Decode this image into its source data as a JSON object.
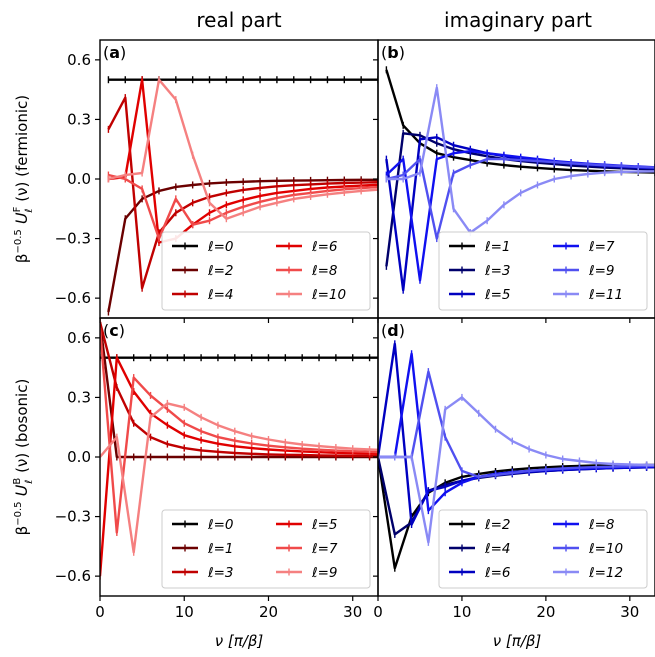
{
  "column_titles": [
    "real part",
    "imaginary part"
  ],
  "row_ylabels": {
    "fermionic": {
      "prefix": "β",
      "prefix_sup": "−0.5",
      "main": "U",
      "sup": "F",
      "sub": "ℓ",
      "arg": "(ν) (fermionic)"
    },
    "bosonic": {
      "prefix": "β",
      "prefix_sup": "−0.5",
      "main": "U",
      "sup": "B",
      "sub": "ℓ",
      "arg": "(ν) (bosonic)"
    }
  },
  "xlabel": "ν [π/β]",
  "x_ticks": [
    0,
    10,
    20,
    30
  ],
  "y_ticks": [
    -0.6,
    -0.3,
    0.0,
    0.3,
    0.6
  ],
  "y_tick_labels": [
    "−0.6",
    "−0.3",
    "0.0",
    "0.3",
    "0.6"
  ],
  "x_tick_labels": [
    "0",
    "10",
    "20",
    "30"
  ],
  "xlim": [
    0,
    33
  ],
  "ylim": [
    -0.7,
    0.7
  ],
  "chart_data": [
    {
      "panel": "(a)",
      "type": "line",
      "legend_position": "lower-right",
      "series": [
        {
          "name": "ℓ=0",
          "color": "#000000",
          "x": [
            1,
            3,
            5,
            7,
            9,
            11,
            13,
            15,
            17,
            19,
            21,
            23,
            25,
            27,
            29,
            31,
            33
          ],
          "y": [
            0.5,
            0.5,
            0.5,
            0.5,
            0.5,
            0.5,
            0.5,
            0.5,
            0.5,
            0.5,
            0.5,
            0.5,
            0.5,
            0.5,
            0.5,
            0.5,
            0.5
          ]
        },
        {
          "name": "ℓ=2",
          "color": "#6b0000",
          "x": [
            1,
            3,
            5,
            7,
            9,
            11,
            13,
            15,
            17,
            19,
            21,
            23,
            25,
            27,
            29,
            31,
            33
          ],
          "y": [
            -0.67,
            -0.2,
            -0.1,
            -0.06,
            -0.04,
            -0.03,
            -0.022,
            -0.017,
            -0.014,
            -0.011,
            -0.009,
            -0.008,
            -0.007,
            -0.006,
            -0.005,
            -0.004,
            -0.004
          ]
        },
        {
          "name": "ℓ=4",
          "color": "#c00000",
          "x": [
            1,
            3,
            5,
            7,
            9,
            11,
            13,
            15,
            17,
            19,
            21,
            23,
            25,
            27,
            29,
            31,
            33
          ],
          "y": [
            0.25,
            0.41,
            -0.55,
            -0.27,
            -0.17,
            -0.12,
            -0.09,
            -0.07,
            -0.055,
            -0.045,
            -0.037,
            -0.031,
            -0.027,
            -0.023,
            -0.02,
            -0.018,
            -0.016
          ]
        },
        {
          "name": "ℓ=6",
          "color": "#e00000",
          "x": [
            1,
            3,
            5,
            7,
            9,
            11,
            13,
            15,
            17,
            19,
            21,
            23,
            25,
            27,
            29,
            31,
            33
          ],
          "y": [
            0.0,
            0.01,
            0.5,
            -0.32,
            -0.3,
            -0.23,
            -0.17,
            -0.13,
            -0.105,
            -0.085,
            -0.07,
            -0.06,
            -0.05,
            -0.043,
            -0.038,
            -0.033,
            -0.029
          ]
        },
        {
          "name": "ℓ=8",
          "color": "#f04a4a",
          "x": [
            1,
            3,
            5,
            7,
            9,
            11,
            13,
            15,
            17,
            19,
            21,
            23,
            25,
            27,
            29,
            31,
            33
          ],
          "y": [
            0.02,
            0.0,
            -0.05,
            -0.3,
            -0.1,
            -0.23,
            -0.21,
            -0.17,
            -0.14,
            -0.115,
            -0.095,
            -0.08,
            -0.07,
            -0.06,
            -0.052,
            -0.046,
            -0.041
          ]
        },
        {
          "name": "ℓ=10",
          "color": "#f58080",
          "x": [
            1,
            3,
            5,
            7,
            9,
            11,
            13,
            15,
            17,
            19,
            21,
            23,
            25,
            27,
            29,
            31,
            33
          ],
          "y": [
            0.0,
            0.02,
            0.03,
            0.5,
            0.4,
            0.12,
            -0.12,
            -0.2,
            -0.17,
            -0.14,
            -0.12,
            -0.1,
            -0.088,
            -0.077,
            -0.068,
            -0.06,
            -0.054
          ]
        }
      ]
    },
    {
      "panel": "(b)",
      "type": "line",
      "legend_position": "lower-right",
      "series": [
        {
          "name": "ℓ=1",
          "color": "#000000",
          "x": [
            1,
            3,
            5,
            7,
            9,
            11,
            13,
            15,
            17,
            19,
            21,
            23,
            25,
            27,
            29,
            31,
            33
          ],
          "y": [
            0.55,
            0.27,
            0.18,
            0.13,
            0.11,
            0.095,
            0.08,
            0.07,
            0.062,
            0.056,
            0.05,
            0.045,
            0.042,
            0.039,
            0.036,
            0.034,
            0.032
          ]
        },
        {
          "name": "ℓ=3",
          "color": "#00006b",
          "x": [
            1,
            3,
            5,
            7,
            9,
            11,
            13,
            15,
            17,
            19,
            21,
            23,
            25,
            27,
            29,
            31,
            33
          ],
          "y": [
            -0.44,
            0.23,
            0.22,
            0.18,
            0.15,
            0.13,
            0.115,
            0.1,
            0.09,
            0.082,
            0.075,
            0.068,
            0.063,
            0.058,
            0.054,
            0.051,
            0.048
          ]
        },
        {
          "name": "ℓ=5",
          "color": "#0000c0",
          "x": [
            1,
            3,
            5,
            7,
            9,
            11,
            13,
            15,
            17,
            19,
            21,
            23,
            25,
            27,
            29,
            31,
            33
          ],
          "y": [
            0.1,
            -0.56,
            0.2,
            0.21,
            0.17,
            0.15,
            0.13,
            0.115,
            0.1,
            0.092,
            0.084,
            0.077,
            0.071,
            0.066,
            0.061,
            0.057,
            0.054
          ]
        },
        {
          "name": "ℓ=7",
          "color": "#1010f0",
          "x": [
            1,
            3,
            5,
            7,
            9,
            11,
            13,
            15,
            17,
            19,
            21,
            23,
            25,
            27,
            29,
            31,
            33
          ],
          "y": [
            0.02,
            0.1,
            -0.51,
            0.1,
            0.13,
            0.14,
            0.13,
            0.12,
            0.11,
            0.1,
            0.09,
            0.083,
            0.077,
            0.072,
            0.067,
            0.063,
            0.059
          ]
        },
        {
          "name": "ℓ=9",
          "color": "#5050f0",
          "x": [
            1,
            3,
            5,
            7,
            9,
            11,
            13,
            15,
            17,
            19,
            21,
            23,
            25,
            27,
            29,
            31,
            33
          ],
          "y": [
            0.0,
            0.02,
            0.1,
            -0.3,
            0.03,
            0.07,
            0.1,
            0.1,
            0.095,
            0.09,
            0.085,
            0.079,
            0.074,
            0.069,
            0.065,
            0.061,
            0.058
          ]
        },
        {
          "name": "ℓ=11",
          "color": "#8a8af5",
          "x": [
            1,
            3,
            5,
            7,
            9,
            11,
            13,
            15,
            17,
            19,
            21,
            23,
            25,
            27,
            29,
            31,
            33
          ],
          "y": [
            0.0,
            0.0,
            0.03,
            0.46,
            -0.15,
            -0.27,
            -0.21,
            -0.13,
            -0.07,
            -0.03,
            0.0,
            0.015,
            0.025,
            0.032,
            0.036,
            0.038,
            0.039
          ]
        }
      ]
    },
    {
      "panel": "(c)",
      "type": "line",
      "legend_position": "lower-right",
      "series": [
        {
          "name": "ℓ=0",
          "color": "#000000",
          "x": [
            0,
            2,
            4,
            6,
            8,
            10,
            12,
            14,
            16,
            18,
            20,
            22,
            24,
            26,
            28,
            30,
            32,
            34
          ],
          "y": [
            0.5,
            0.5,
            0.5,
            0.5,
            0.5,
            0.5,
            0.5,
            0.5,
            0.5,
            0.5,
            0.5,
            0.5,
            0.5,
            0.5,
            0.5,
            0.5,
            0.5,
            0.5
          ]
        },
        {
          "name": "ℓ=1",
          "color": "#6b0000",
          "x": [
            0,
            2,
            4,
            6,
            8,
            10,
            12,
            14,
            16,
            18,
            20,
            22,
            24,
            26,
            28,
            30,
            32,
            34
          ],
          "y": [
            0.68,
            0.0,
            0.0,
            0.0,
            0.0,
            0.0,
            0.0,
            0.0,
            0.0,
            0.0,
            0.0,
            0.0,
            0.0,
            0.0,
            0.0,
            0.0,
            0.0,
            0.0
          ]
        },
        {
          "name": "ℓ=3",
          "color": "#c00000",
          "x": [
            0,
            2,
            4,
            6,
            8,
            10,
            12,
            14,
            16,
            18,
            20,
            22,
            24,
            26,
            28,
            30,
            32,
            34
          ],
          "y": [
            0.68,
            0.35,
            0.17,
            0.1,
            0.065,
            0.045,
            0.033,
            0.026,
            0.02,
            0.016,
            0.013,
            0.011,
            0.01,
            0.008,
            0.007,
            0.006,
            0.006,
            0.005
          ]
        },
        {
          "name": "ℓ=5",
          "color": "#e00000",
          "x": [
            0,
            2,
            4,
            6,
            8,
            10,
            12,
            14,
            16,
            18,
            20,
            22,
            24,
            26,
            28,
            30,
            32,
            34
          ],
          "y": [
            -0.6,
            0.5,
            0.33,
            0.22,
            0.16,
            0.11,
            0.085,
            0.067,
            0.054,
            0.045,
            0.038,
            0.032,
            0.028,
            0.024,
            0.021,
            0.019,
            0.017,
            0.015
          ]
        },
        {
          "name": "ℓ=7",
          "color": "#f04a4a",
          "x": [
            0,
            2,
            4,
            6,
            8,
            10,
            12,
            14,
            16,
            18,
            20,
            22,
            24,
            26,
            28,
            30,
            32,
            34
          ],
          "y": [
            0.65,
            -0.38,
            0.4,
            0.31,
            0.24,
            0.17,
            0.13,
            0.1,
            0.082,
            0.068,
            0.057,
            0.049,
            0.042,
            0.037,
            0.032,
            0.029,
            0.026,
            0.023
          ]
        },
        {
          "name": "ℓ=9",
          "color": "#f58080",
          "x": [
            0,
            2,
            4,
            6,
            8,
            10,
            12,
            14,
            16,
            18,
            20,
            22,
            24,
            26,
            28,
            30,
            32,
            34
          ],
          "y": [
            0.0,
            0.1,
            -0.48,
            0.2,
            0.27,
            0.25,
            0.2,
            0.16,
            0.13,
            0.105,
            0.088,
            0.074,
            0.063,
            0.055,
            0.048,
            0.042,
            0.038,
            0.034
          ]
        }
      ]
    },
    {
      "panel": "(d)",
      "type": "line",
      "legend_position": "lower-right",
      "series": [
        {
          "name": "ℓ=2",
          "color": "#000000",
          "x": [
            0,
            2,
            4,
            6,
            8,
            10,
            12,
            14,
            16,
            18,
            20,
            22,
            24,
            26,
            28,
            30,
            32,
            34
          ],
          "y": [
            0.0,
            -0.56,
            -0.3,
            -0.18,
            -0.13,
            -0.1,
            -0.085,
            -0.073,
            -0.064,
            -0.057,
            -0.052,
            -0.048,
            -0.045,
            -0.043,
            -0.042,
            -0.041,
            -0.04,
            -0.04
          ]
        },
        {
          "name": "ℓ=4",
          "color": "#00006b",
          "x": [
            0,
            2,
            4,
            6,
            8,
            10,
            12,
            14,
            16,
            18,
            20,
            22,
            24,
            26,
            28,
            30,
            32,
            34
          ],
          "y": [
            0.0,
            -0.39,
            -0.33,
            -0.17,
            -0.14,
            -0.12,
            -0.105,
            -0.094,
            -0.085,
            -0.077,
            -0.071,
            -0.066,
            -0.062,
            -0.059,
            -0.056,
            -0.054,
            -0.052,
            -0.051
          ]
        },
        {
          "name": "ℓ=6",
          "color": "#0000c0",
          "x": [
            0,
            2,
            4,
            6,
            8,
            10,
            12,
            14,
            16,
            18,
            20,
            22,
            24,
            26,
            28,
            30,
            32,
            34
          ],
          "y": [
            0.0,
            0.57,
            -0.34,
            -0.17,
            -0.15,
            -0.12,
            -0.1,
            -0.09,
            -0.082,
            -0.075,
            -0.07,
            -0.066,
            -0.062,
            -0.059,
            -0.056,
            -0.054,
            -0.052,
            -0.05
          ]
        },
        {
          "name": "ℓ=8",
          "color": "#1010f0",
          "x": [
            0,
            2,
            4,
            6,
            8,
            10,
            12,
            14,
            16,
            18,
            20,
            22,
            24,
            26,
            28,
            30,
            32,
            34
          ],
          "y": [
            0.0,
            0.0,
            0.52,
            -0.27,
            -0.18,
            -0.13,
            -0.1,
            -0.085,
            -0.076,
            -0.07,
            -0.065,
            -0.061,
            -0.058,
            -0.055,
            -0.053,
            -0.051,
            -0.049,
            -0.048
          ]
        },
        {
          "name": "ℓ=10",
          "color": "#5050f0",
          "x": [
            0,
            2,
            4,
            6,
            8,
            10,
            12,
            14,
            16,
            18,
            20,
            22,
            24,
            26,
            28,
            30,
            32,
            34
          ],
          "y": [
            0.0,
            0.0,
            0.0,
            0.43,
            0.1,
            -0.07,
            -0.1,
            -0.09,
            -0.08,
            -0.07,
            -0.063,
            -0.058,
            -0.054,
            -0.051,
            -0.049,
            -0.047,
            -0.045,
            -0.044
          ]
        },
        {
          "name": "ℓ=12",
          "color": "#8a8af5",
          "x": [
            0,
            2,
            4,
            6,
            8,
            10,
            12,
            14,
            16,
            18,
            20,
            22,
            24,
            26,
            28,
            30,
            32,
            34
          ],
          "y": [
            0.0,
            0.0,
            0.0,
            -0.43,
            0.24,
            0.3,
            0.22,
            0.14,
            0.08,
            0.04,
            0.01,
            -0.01,
            -0.02,
            -0.03,
            -0.035,
            -0.038,
            -0.04,
            -0.041
          ]
        }
      ]
    }
  ]
}
